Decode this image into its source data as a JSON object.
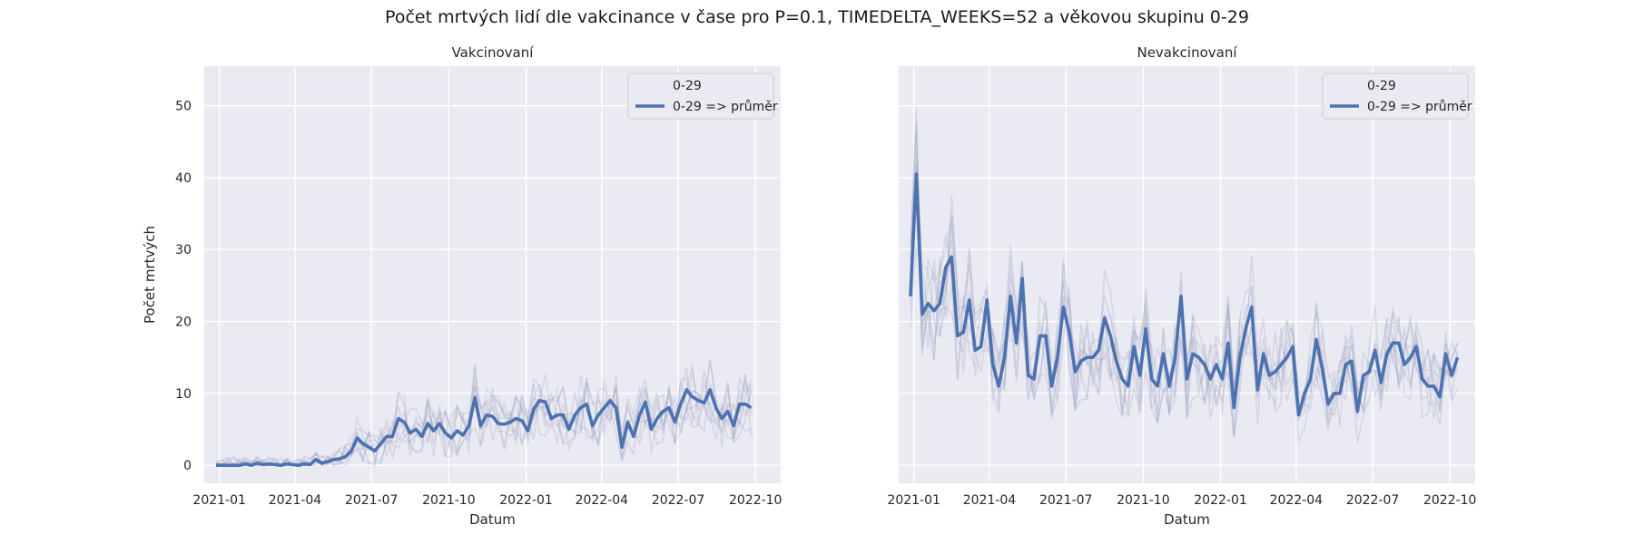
{
  "figure_title": "Počet mrtvých lidí dle vakcinance v čase pro P=0.1, TIMEDELTA_WEEKS=52 a věkovou skupinu 0-29",
  "colors": {
    "background": "#eaeaf2",
    "grid": "#ffffff",
    "mean_line": "#4c72b0",
    "thin_lines": "#8c92b8",
    "legend_bg": "#eaeaf2",
    "legend_border": "#cccccc"
  },
  "chart_data": [
    {
      "type": "line",
      "title": "Vakcinovaní",
      "xlabel": "Datum",
      "ylabel": "Počet mrtvých",
      "x_start": "2020-12-28",
      "x_step_days": 7,
      "xlim": [
        "2020-12-14",
        "2022-10-31"
      ],
      "ylim": [
        -2.5,
        55.5
      ],
      "x_ticks": [
        "2021-01",
        "2021-04",
        "2021-07",
        "2021-10",
        "2022-01",
        "2022-04",
        "2022-07",
        "2022-10"
      ],
      "y_ticks": [
        0,
        10,
        20,
        30,
        40,
        50
      ],
      "grid": true,
      "legend": {
        "placement": "upper right",
        "title": "0-29",
        "entries": [
          "0-29 => průměr"
        ]
      },
      "series": [
        {
          "name": "0-29 => průměr",
          "values": [
            0,
            0,
            0,
            0,
            0,
            0.2,
            0,
            0.3,
            0.1,
            0.2,
            0.1,
            0,
            0.2,
            0.1,
            0,
            0.2,
            0.1,
            0.8,
            0.3,
            0.5,
            0.8,
            0.9,
            1.2,
            2,
            3.8,
            3,
            2.5,
            2,
            3,
            4,
            4,
            6.5,
            6,
            4.5,
            5,
            4,
            5.8,
            4.8,
            5.8,
            4.5,
            3.8,
            4.8,
            4.2,
            5.5,
            9.4,
            5.5,
            7,
            6.8,
            5.8,
            5.7,
            6,
            6.5,
            6.2,
            4.8,
            7.8,
            9,
            8.8,
            6.5,
            7,
            7,
            5,
            7,
            8,
            8.5,
            5.5,
            7,
            8,
            9,
            8,
            2.5,
            6,
            4,
            7,
            8.8,
            5,
            6.5,
            7.5,
            8,
            6,
            8.5,
            10.5,
            9.5,
            9,
            8.7,
            10.5,
            8,
            6.5,
            7.5,
            5.5,
            8.5,
            8.5,
            8
          ]
        }
      ]
    },
    {
      "type": "line",
      "title": "Nevakcinovaní",
      "xlabel": "Datum",
      "ylabel": "",
      "x_start": "2020-12-28",
      "x_step_days": 7,
      "xlim": [
        "2020-12-14",
        "2022-10-31"
      ],
      "ylim": [
        -2.5,
        55.5
      ],
      "x_ticks": [
        "2021-01",
        "2021-04",
        "2021-07",
        "2021-10",
        "2022-01",
        "2022-04",
        "2022-07",
        "2022-10"
      ],
      "y_ticks": [
        0,
        10,
        20,
        30,
        40,
        50
      ],
      "grid": true,
      "legend": {
        "placement": "upper right",
        "title": "0-29",
        "entries": [
          "0-29 => průměr"
        ]
      },
      "series": [
        {
          "name": "0-29 => průměr",
          "values": [
            23.5,
            40.5,
            21,
            22.5,
            21.5,
            22.5,
            27.5,
            29,
            18,
            18.5,
            23,
            16,
            16.5,
            23,
            14,
            11,
            15,
            23.5,
            17,
            26,
            12.5,
            12,
            18,
            18,
            11,
            15,
            22,
            18.5,
            13,
            14.5,
            15,
            15,
            16,
            20.5,
            18,
            14.5,
            12,
            11,
            16.5,
            12.5,
            19,
            12,
            11,
            15.5,
            11,
            15,
            23.5,
            12,
            15.5,
            15,
            14,
            12,
            14,
            12,
            17,
            8,
            15,
            19,
            22,
            10.5,
            15.5,
            12.5,
            13,
            14,
            15,
            16.5,
            7,
            10,
            12,
            17.5,
            13.5,
            8.5,
            10,
            10,
            14,
            14.5,
            7.5,
            12.5,
            13,
            16,
            11.5,
            15.5,
            17,
            17,
            14,
            15,
            16.5,
            12,
            11,
            11,
            9.5,
            15.5,
            12.5,
            15
          ]
        }
      ]
    }
  ]
}
